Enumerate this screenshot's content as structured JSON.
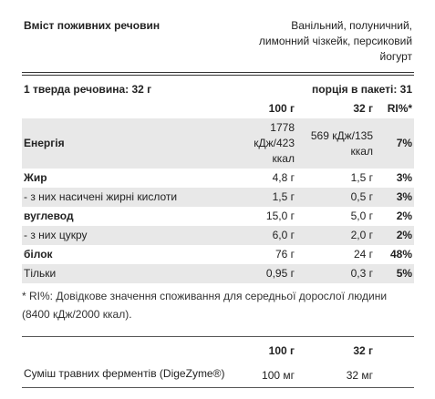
{
  "header": {
    "title": "Вміст поживних речовин",
    "flavors": "Ванільний, полуничний, лимонний чізкейк, персиковий йогурт"
  },
  "serving": {
    "size": "1 тверда речовина: 32 г",
    "per_pack": "порція в пакеті: 31"
  },
  "table": {
    "columns": [
      "100 г",
      "32 г",
      "RI%*"
    ],
    "rows": [
      [
        "Енергія",
        "1778 кДж/423 ккал",
        "569 кДж/135 ккал",
        "7%"
      ],
      [
        "Жир",
        "4,8 г",
        "1,5 г",
        "3%"
      ],
      [
        "- з них насичені жирні кислоти",
        "1,5 г",
        "0,5 г",
        "3%"
      ],
      [
        "вуглевод",
        "15,0 г",
        "5,0 г",
        "2%"
      ],
      [
        "- з них цукру",
        "6,0 г",
        "2,0 г",
        "2%"
      ],
      [
        "білок",
        "76 г",
        "24 г",
        "48%"
      ],
      [
        "Тільки",
        "0,95 г",
        "0,3 г",
        "5%"
      ]
    ]
  },
  "footnote": "* RI%: Довідкове значення споживання для середньої дорослої людини (8400 кДж/2000 ккал).",
  "enzymes": {
    "columns": [
      "100 г",
      "32 г"
    ],
    "rows": [
      [
        "Суміш травних ферментів (DigeZyme®)",
        "100 мг",
        "32 мг"
      ]
    ]
  }
}
